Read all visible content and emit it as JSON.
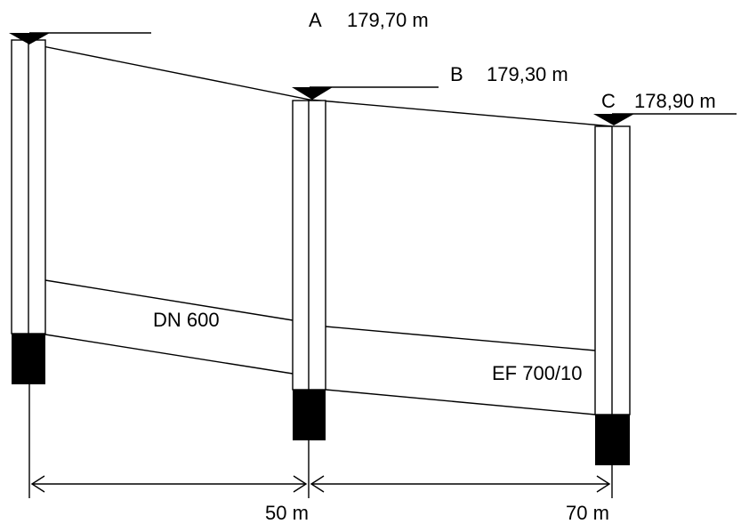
{
  "manholes": [
    {
      "id": "A",
      "elevation": "179,70 m"
    },
    {
      "id": "B",
      "elevation": "179,30 m"
    },
    {
      "id": "C",
      "elevation": "178,90 m"
    }
  ],
  "pipes": [
    {
      "label": "DN 600"
    },
    {
      "label": "EF 700/10"
    }
  ],
  "distances": [
    {
      "label": "50 m"
    },
    {
      "label": "70 m"
    }
  ],
  "colors": {
    "ink": "#000000",
    "background": "#ffffff"
  }
}
